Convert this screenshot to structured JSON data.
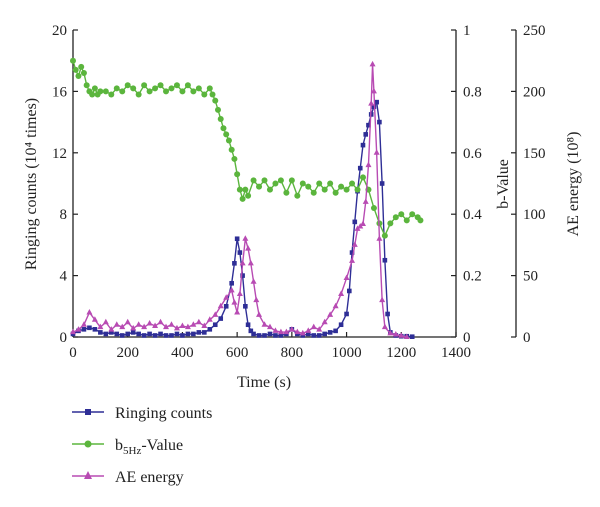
{
  "chart_data": {
    "type": "line",
    "xlabel": "Time (s)",
    "ylabel_left": "Ringing counts (10⁴ times)",
    "ylabel_right1": "b-Value",
    "ylabel_right2": "AE energy (10⁸)",
    "x_ticks": [
      "0",
      "200",
      "400",
      "600",
      "800",
      "1000",
      "1200",
      "1400"
    ],
    "y_left_ticks": [
      "0",
      "4",
      "8",
      "12",
      "16",
      "20"
    ],
    "y_right1_ticks": [
      "0",
      "0.2",
      "0.4",
      "0.6",
      "0.8",
      "1"
    ],
    "y_right2_ticks": [
      "0",
      "50",
      "100",
      "150",
      "200",
      "250"
    ],
    "xlim": [
      0,
      1400
    ],
    "ylim_left": [
      0,
      20
    ],
    "ylim_right1": [
      0,
      1
    ],
    "ylim_right2": [
      0,
      250
    ],
    "grid": false,
    "legend_position": "bottom",
    "series": [
      {
        "name": "Ringing counts",
        "axis": "left",
        "color": "#2e2e96",
        "marker": "square",
        "x": [
          0,
          20,
          40,
          60,
          80,
          100,
          120,
          140,
          160,
          180,
          200,
          220,
          240,
          260,
          280,
          300,
          320,
          340,
          360,
          380,
          400,
          420,
          440,
          460,
          480,
          500,
          520,
          540,
          560,
          580,
          590,
          600,
          610,
          620,
          630,
          640,
          650,
          660,
          680,
          700,
          720,
          740,
          760,
          780,
          800,
          820,
          840,
          860,
          880,
          900,
          920,
          940,
          960,
          980,
          1000,
          1010,
          1020,
          1030,
          1040,
          1050,
          1060,
          1070,
          1080,
          1090,
          1100,
          1110,
          1120,
          1130,
          1140,
          1150,
          1160,
          1180,
          1200,
          1220,
          1240
        ],
        "y": [
          0.2,
          0.4,
          0.5,
          0.6,
          0.5,
          0.3,
          0.2,
          0.3,
          0.2,
          0.1,
          0.2,
          0.3,
          0.2,
          0.1,
          0.2,
          0.1,
          0.2,
          0.1,
          0.1,
          0.2,
          0.1,
          0.2,
          0.2,
          0.3,
          0.3,
          0.5,
          0.8,
          1.2,
          2.0,
          3.5,
          4.8,
          6.4,
          5.5,
          4.0,
          2.0,
          0.8,
          0.4,
          0.2,
          0.1,
          0.1,
          0.2,
          0.1,
          0.1,
          0.2,
          0.5,
          0.2,
          0.1,
          0.2,
          0.1,
          0.1,
          0.2,
          0.3,
          0.4,
          0.8,
          1.5,
          3.0,
          5.5,
          7.5,
          9.5,
          11.0,
          12.5,
          13.2,
          13.8,
          14.5,
          15.0,
          15.3,
          14.0,
          10.0,
          5.0,
          1.5,
          0.3,
          0.1,
          0.05,
          0.05,
          0.02
        ]
      },
      {
        "name": "b5Hz-Value",
        "axis": "right1",
        "color": "#5bb53d",
        "marker": "circle",
        "x": [
          0,
          10,
          20,
          30,
          40,
          50,
          60,
          70,
          80,
          90,
          100,
          120,
          140,
          160,
          180,
          200,
          220,
          240,
          260,
          280,
          300,
          320,
          340,
          360,
          380,
          400,
          420,
          440,
          460,
          480,
          500,
          510,
          520,
          530,
          540,
          550,
          560,
          570,
          580,
          590,
          600,
          610,
          620,
          630,
          640,
          660,
          680,
          700,
          720,
          740,
          760,
          780,
          800,
          820,
          840,
          860,
          880,
          900,
          920,
          940,
          960,
          980,
          1000,
          1020,
          1040,
          1060,
          1080,
          1100,
          1120,
          1140,
          1160,
          1180,
          1200,
          1220,
          1240,
          1260,
          1270
        ],
        "y": [
          0.9,
          0.87,
          0.85,
          0.88,
          0.86,
          0.82,
          0.8,
          0.79,
          0.81,
          0.79,
          0.8,
          0.8,
          0.79,
          0.81,
          0.8,
          0.82,
          0.81,
          0.79,
          0.82,
          0.8,
          0.81,
          0.82,
          0.8,
          0.81,
          0.82,
          0.8,
          0.82,
          0.8,
          0.81,
          0.79,
          0.81,
          0.79,
          0.77,
          0.74,
          0.71,
          0.68,
          0.66,
          0.64,
          0.61,
          0.58,
          0.53,
          0.48,
          0.45,
          0.48,
          0.46,
          0.51,
          0.49,
          0.51,
          0.48,
          0.5,
          0.51,
          0.47,
          0.51,
          0.46,
          0.5,
          0.49,
          0.47,
          0.5,
          0.48,
          0.5,
          0.47,
          0.49,
          0.48,
          0.5,
          0.48,
          0.52,
          0.48,
          0.42,
          0.37,
          0.33,
          0.37,
          0.39,
          0.4,
          0.38,
          0.4,
          0.39,
          0.38
        ]
      },
      {
        "name": "AE energy",
        "axis": "right2",
        "color": "#b84bb3",
        "marker": "triangle",
        "x": [
          0,
          20,
          40,
          60,
          80,
          100,
          120,
          140,
          160,
          180,
          200,
          220,
          240,
          260,
          280,
          300,
          320,
          340,
          360,
          380,
          400,
          420,
          440,
          460,
          480,
          500,
          520,
          540,
          560,
          580,
          590,
          600,
          610,
          620,
          630,
          640,
          650,
          660,
          670,
          680,
          700,
          720,
          740,
          760,
          780,
          800,
          820,
          840,
          860,
          880,
          900,
          920,
          940,
          960,
          980,
          1000,
          1020,
          1030,
          1040,
          1050,
          1060,
          1070,
          1080,
          1090,
          1095,
          1100,
          1110,
          1120,
          1130,
          1140,
          1160,
          1180,
          1200,
          1220
        ],
        "y": [
          4,
          6,
          10,
          20,
          14,
          8,
          12,
          6,
          10,
          8,
          12,
          7,
          10,
          8,
          11,
          9,
          12,
          8,
          10,
          7,
          9,
          8,
          10,
          12,
          9,
          14,
          18,
          25,
          32,
          38,
          28,
          20,
          35,
          60,
          80,
          72,
          60,
          45,
          30,
          18,
          10,
          8,
          5,
          4,
          4,
          6,
          4,
          3,
          5,
          8,
          6,
          12,
          18,
          25,
          35,
          48,
          62,
          75,
          88,
          90,
          92,
          110,
          140,
          190,
          222,
          200,
          150,
          80,
          30,
          8,
          3,
          2,
          1,
          0
        ]
      }
    ]
  },
  "legend": {
    "items": [
      {
        "label": "Ringing counts"
      },
      {
        "label_main": "b",
        "label_sub": "5Hz",
        "label_rest": "-Value"
      },
      {
        "label": "AE energy"
      }
    ]
  }
}
